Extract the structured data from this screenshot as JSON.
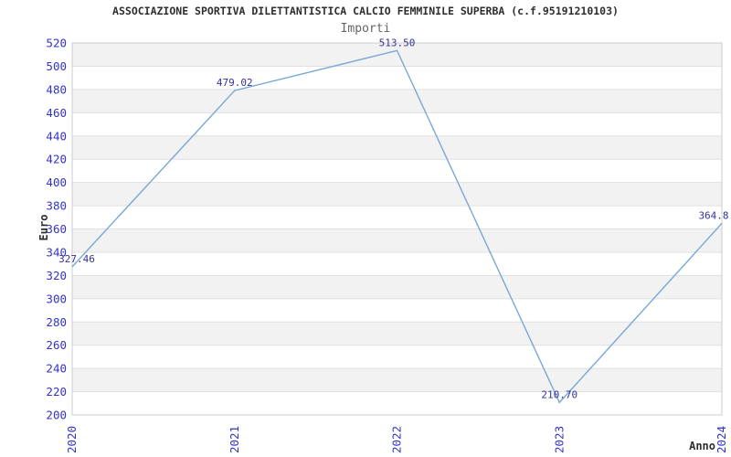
{
  "header": {
    "title": "ASSOCIAZIONE SPORTIVA DILETTANTISTICA CALCIO FEMMINILE SUPERBA (c.f.95191210103)",
    "subtitle": "Importi"
  },
  "chart_data": {
    "type": "line",
    "title": "ASSOCIAZIONE SPORTIVA DILETTANTISTICA CALCIO FEMMINILE SUPERBA (c.f.95191210103)",
    "subtitle": "Importi",
    "xlabel": "Anno",
    "ylabel": "Euro",
    "categories": [
      "2020",
      "2021",
      "2022",
      "2023",
      "2024"
    ],
    "values": [
      327.46,
      479.02,
      513.5,
      210.7,
      364.8
    ],
    "point_labels": [
      "327.46",
      "479.02",
      "513.50",
      "210.70",
      "364.8"
    ],
    "series_name": "Importi",
    "ylim": [
      200,
      520
    ],
    "ytick_step": 20,
    "grid": "horizontal",
    "legend": "none",
    "banded_rows": true,
    "colors": {
      "line": "#78a8d8",
      "axis_tick_label": "#3333cc",
      "point_label": "#333399",
      "band": "#f2f2f2",
      "gridline": "#e0e0e0",
      "plot_border": "#cccccc",
      "title": "#2e2e2e",
      "subtitle": "#666666",
      "axis_title": "#2e2e2e"
    }
  }
}
